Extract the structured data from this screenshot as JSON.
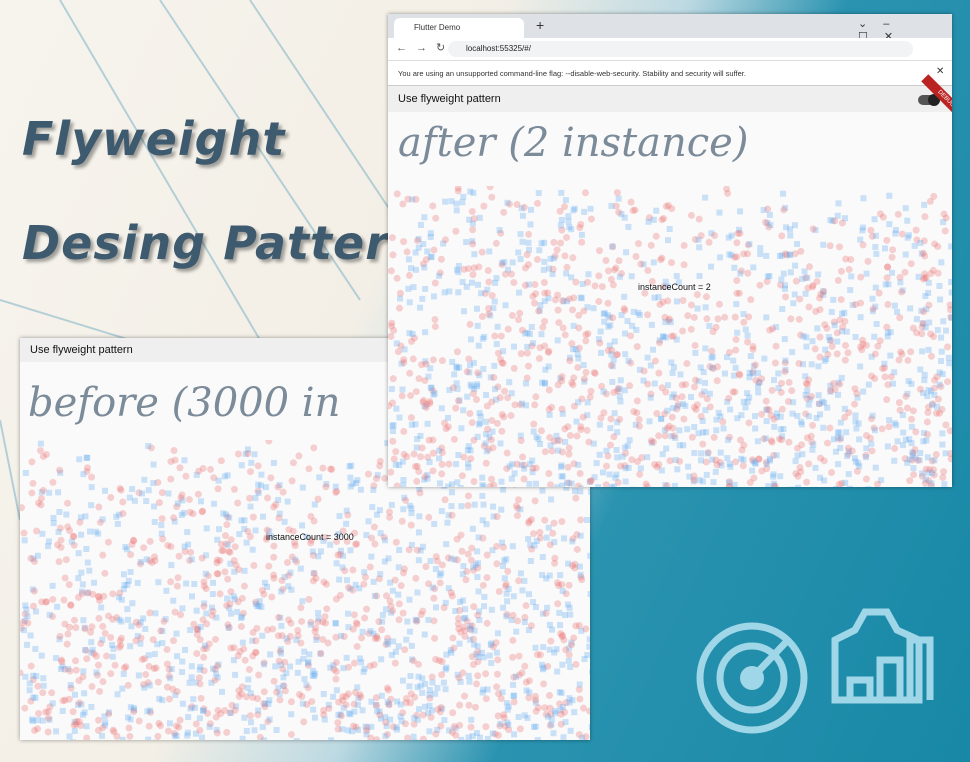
{
  "banner": {
    "title_line1": "Flyweight",
    "title_line2": "Desing Pattern"
  },
  "before_window": {
    "header": "Use flyweight pattern",
    "heading": "before (3000 in",
    "counter": "instanceCount = 3000"
  },
  "after_window": {
    "tab_title": "Flutter Demo",
    "url": "localhost:55325/#/",
    "warning": "You are using an unsupported command-line flag: --disable-web-security. Stability and security will suffer.",
    "header": "Use flyweight pattern",
    "debug_badge": "DEBUG",
    "heading": "after (2 instance)",
    "counter": "instanceCount = 2"
  }
}
